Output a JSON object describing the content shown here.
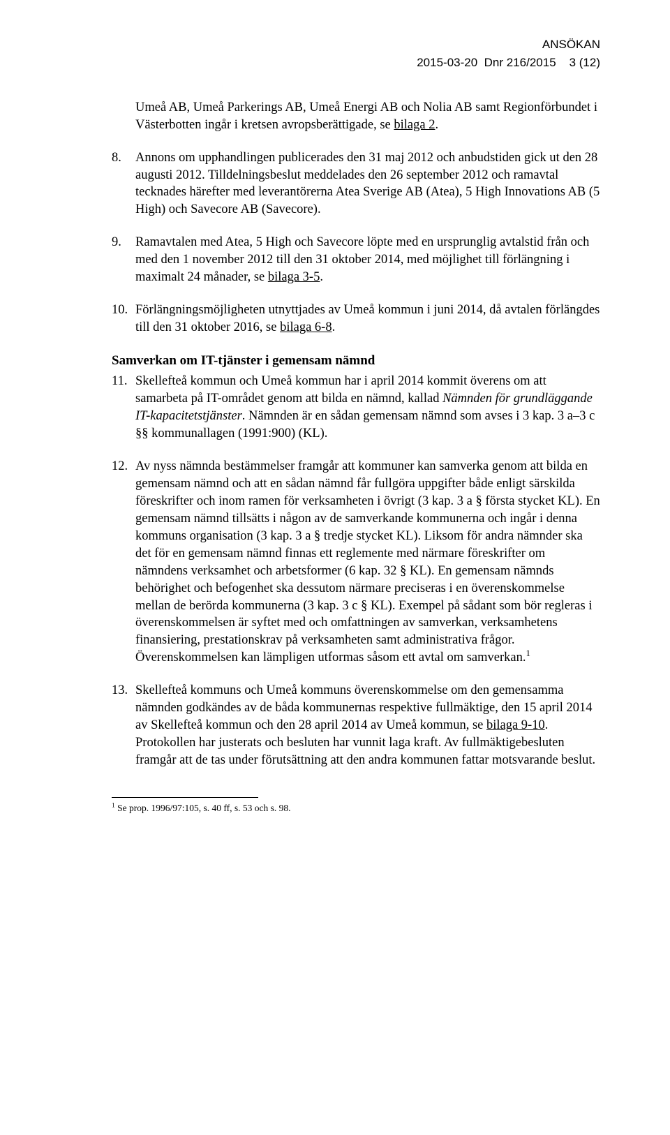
{
  "header": {
    "line1": "ANSÖKAN",
    "date": "2015-03-20",
    "dnr": "Dnr 216/2015",
    "page": "3 (12)"
  },
  "paragraphs": {
    "p_intro": "Umeå AB, Umeå Parkerings AB, Umeå Energi AB och Nolia AB samt Regionförbundet i Västerbotten ingår i kretsen avropsberättigade, se ",
    "p_intro_bilaga": "bilaga 2",
    "p_intro_end": ".",
    "p8_num": "8.",
    "p8": "Annons om upphandlingen publicerades den 31 maj 2012 och anbudstiden gick ut den 28 augusti 2012. Tilldelningsbeslut meddelades den 26 september 2012 och ramavtal tecknades härefter med leverantörerna Atea Sverige AB (Atea), 5 High Innovations AB (5 High) och Savecore AB (Savecore).",
    "p9_num": "9.",
    "p9_a": "Ramavtalen med Atea, 5 High och Savecore löpte med en ursprunglig avtalstid från och med den 1 november 2012 till den 31 oktober 2014, med möjlighet till förlängning i maximalt 24 månader, se ",
    "p9_bilaga": "bilaga 3-5",
    "p9_b": ".",
    "p10_num": "10.",
    "p10_a": "Förlängningsmöjligheten utnyttjades av Umeå kommun i juni 2014, då avtalen förlängdes till den 31 oktober 2016, se ",
    "p10_bilaga": "bilaga 6-8",
    "p10_b": ".",
    "section_head": "Samverkan om IT-tjänster i gemensam nämnd",
    "p11_num": "11.",
    "p11_a": "Skellefteå kommun och Umeå kommun har i april 2014 kommit överens om att samarbeta på IT-området genom att bilda en nämnd, kallad ",
    "p11_italic": "Nämnden för grundläggande IT-kapacitetstjänster",
    "p11_b": ". Nämnden är en sådan gemensam nämnd som avses i 3 kap. 3 a–3 c §§ kommunallagen (1991:900) (KL).",
    "p12_num": "12.",
    "p12": "Av nyss nämnda bestämmelser framgår att kommuner kan samverka genom att bilda en gemensam nämnd och att en sådan nämnd får fullgöra uppgifter både enligt särskilda föreskrifter och inom ramen för verksamheten i övrigt (3 kap. 3 a § första stycket KL). En gemensam nämnd tillsätts i någon av de samverkande kommunerna och ingår i denna kommuns organisation (3 kap. 3 a § tredje stycket KL). Liksom för andra nämnder ska det för en gemensam nämnd finnas ett reglemente med närmare föreskrifter om nämndens verksamhet och arbetsformer (6 kap. 32 § KL). En gemensam nämnds behörighet och befogenhet ska dessutom närmare preciseras i en överenskommelse mellan de berörda kommunerna (3 kap. 3 c § KL). Exempel på sådant som bör regleras i överenskommelsen är syftet med och omfattningen av samverkan, verksamhetens finansiering, prestationskrav på verksamheten samt administrativa frågor. Överenskommelsen kan lämpligen utformas såsom ett avtal om samverkan.",
    "p12_sup": "1",
    "p13_num": "13.",
    "p13_a": "Skellefteå kommuns och Umeå kommuns överenskommelse om den gemensamma nämnden godkändes av de båda kommunernas respektive fullmäktige, den 15 april 2014 av Skellefteå kommun och den 28 april 2014 av Umeå kommun, se ",
    "p13_bilaga": "bilaga 9-10",
    "p13_b": ". Protokollen har justerats och besluten har vunnit laga kraft. Av fullmäktigebesluten framgår att de tas under förutsättning att den andra kommunen fattar motsvarande beslut.",
    "footnote_marker": "1",
    "footnote": " Se prop. 1996/97:105, s. 40 ff, s. 53 och s. 98."
  }
}
